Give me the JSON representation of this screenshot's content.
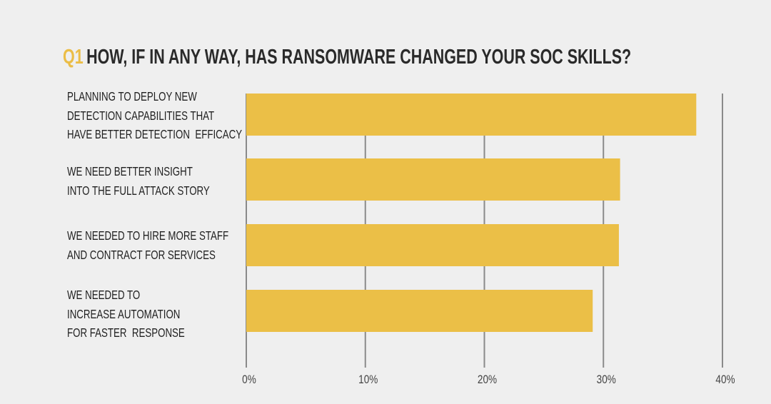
{
  "chart_data": {
    "type": "bar",
    "orientation": "horizontal",
    "title_prefix": "Q1",
    "title": "HOW, IF IN ANY WAY, HAS RANSOMWARE CHANGED YOUR SOC SKILLS?",
    "categories": [
      [
        "PLANNING TO DEPLOY NEW",
        "DETECTION CAPABILITIES THAT",
        "HAVE BETTER DETECTION  EFFICACY"
      ],
      [
        "WE NEED BETTER INSIGHT",
        "INTO THE FULL ATTACK STORY"
      ],
      [
        "WE NEEDED TO HIRE MORE STAFF",
        "AND CONTRACT FOR SERVICES"
      ],
      [
        "WE NEEDED TO",
        "INCREASE AUTOMATION",
        "FOR FASTER  RESPONSE"
      ]
    ],
    "values": [
      37.8,
      31.4,
      31.3,
      29.1
    ],
    "xlim": [
      0,
      40
    ],
    "xticks": [
      0,
      10,
      20,
      30,
      40
    ],
    "xtick_labels": [
      "0%",
      "10%",
      "20%",
      "30%",
      "40%"
    ],
    "xlabel": "",
    "ylabel": "",
    "grid": true,
    "colors": {
      "bar": "#ebbf47",
      "accent": "#ebbd46",
      "grid": "#8a8a8a",
      "axis": "#888888"
    }
  }
}
